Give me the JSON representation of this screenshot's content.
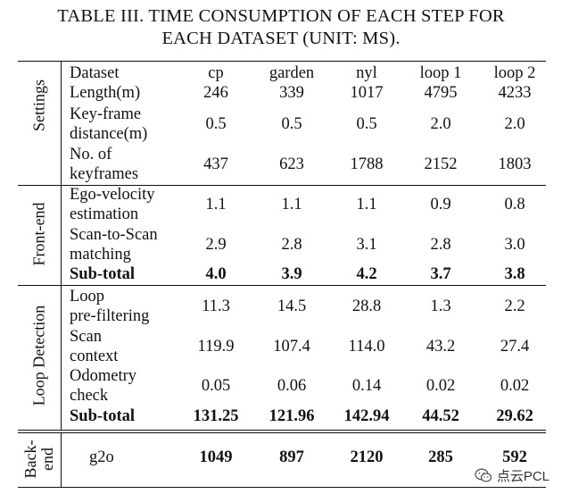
{
  "caption": {
    "line1": "TABLE III. TIME CONSUMPTION OF EACH STEP FOR",
    "line2": "EACH DATASET (UNIT: MS)."
  },
  "sections": {
    "settings": "Settings",
    "frontend": "Front-end",
    "loop": "Loop Detection",
    "backend_1": "Back-",
    "backend_2": "end"
  },
  "header": {
    "dataset_label": "Dataset",
    "columns": [
      "cp",
      "garden",
      "nyl",
      "loop 1",
      "loop 2"
    ]
  },
  "rows": {
    "length": {
      "label": "Length(m)",
      "values": [
        "246",
        "339",
        "1017",
        "4795",
        "4233"
      ]
    },
    "keyframe_distance": {
      "label_1": "Key-frame",
      "label_2": "distance(m)",
      "values": [
        "0.5",
        "0.5",
        "0.5",
        "2.0",
        "2.0"
      ]
    },
    "num_keyframes": {
      "label_1": "No. of",
      "label_2": "keyframes",
      "values": [
        "437",
        "623",
        "1788",
        "2152",
        "1803"
      ]
    },
    "ego_velocity": {
      "label_1": "Ego-velocity",
      "label_2": "estimation",
      "values": [
        "1.1",
        "1.1",
        "1.1",
        "0.9",
        "0.8"
      ]
    },
    "scan_to_scan": {
      "label_1": "Scan-to-Scan",
      "label_2": "matching",
      "values": [
        "2.9",
        "2.8",
        "3.1",
        "2.8",
        "3.0"
      ]
    },
    "frontend_subtotal": {
      "label": "Sub-total",
      "values": [
        "4.0",
        "3.9",
        "4.2",
        "3.7",
        "3.8"
      ]
    },
    "loop_prefilter": {
      "label_1": "Loop",
      "label_2": "pre-filtering",
      "values": [
        "11.3",
        "14.5",
        "28.8",
        "1.3",
        "2.2"
      ]
    },
    "scan_context": {
      "label_1": "Scan",
      "label_2": "context",
      "values": [
        "119.9",
        "107.4",
        "114.0",
        "43.2",
        "27.4"
      ]
    },
    "odometry_check": {
      "label_1": "Odometry",
      "label_2": "check",
      "values": [
        "0.05",
        "0.06",
        "0.14",
        "0.02",
        "0.02"
      ]
    },
    "loop_subtotal": {
      "label": "Sub-total",
      "values": [
        "131.25",
        "121.96",
        "142.94",
        "44.52",
        "29.62"
      ]
    },
    "g2o": {
      "label": "g2o",
      "values": [
        "1049",
        "897",
        "2120",
        "285",
        "592"
      ]
    }
  },
  "watermark": {
    "text": "点云PCL",
    "icon": "wechat-icon"
  }
}
